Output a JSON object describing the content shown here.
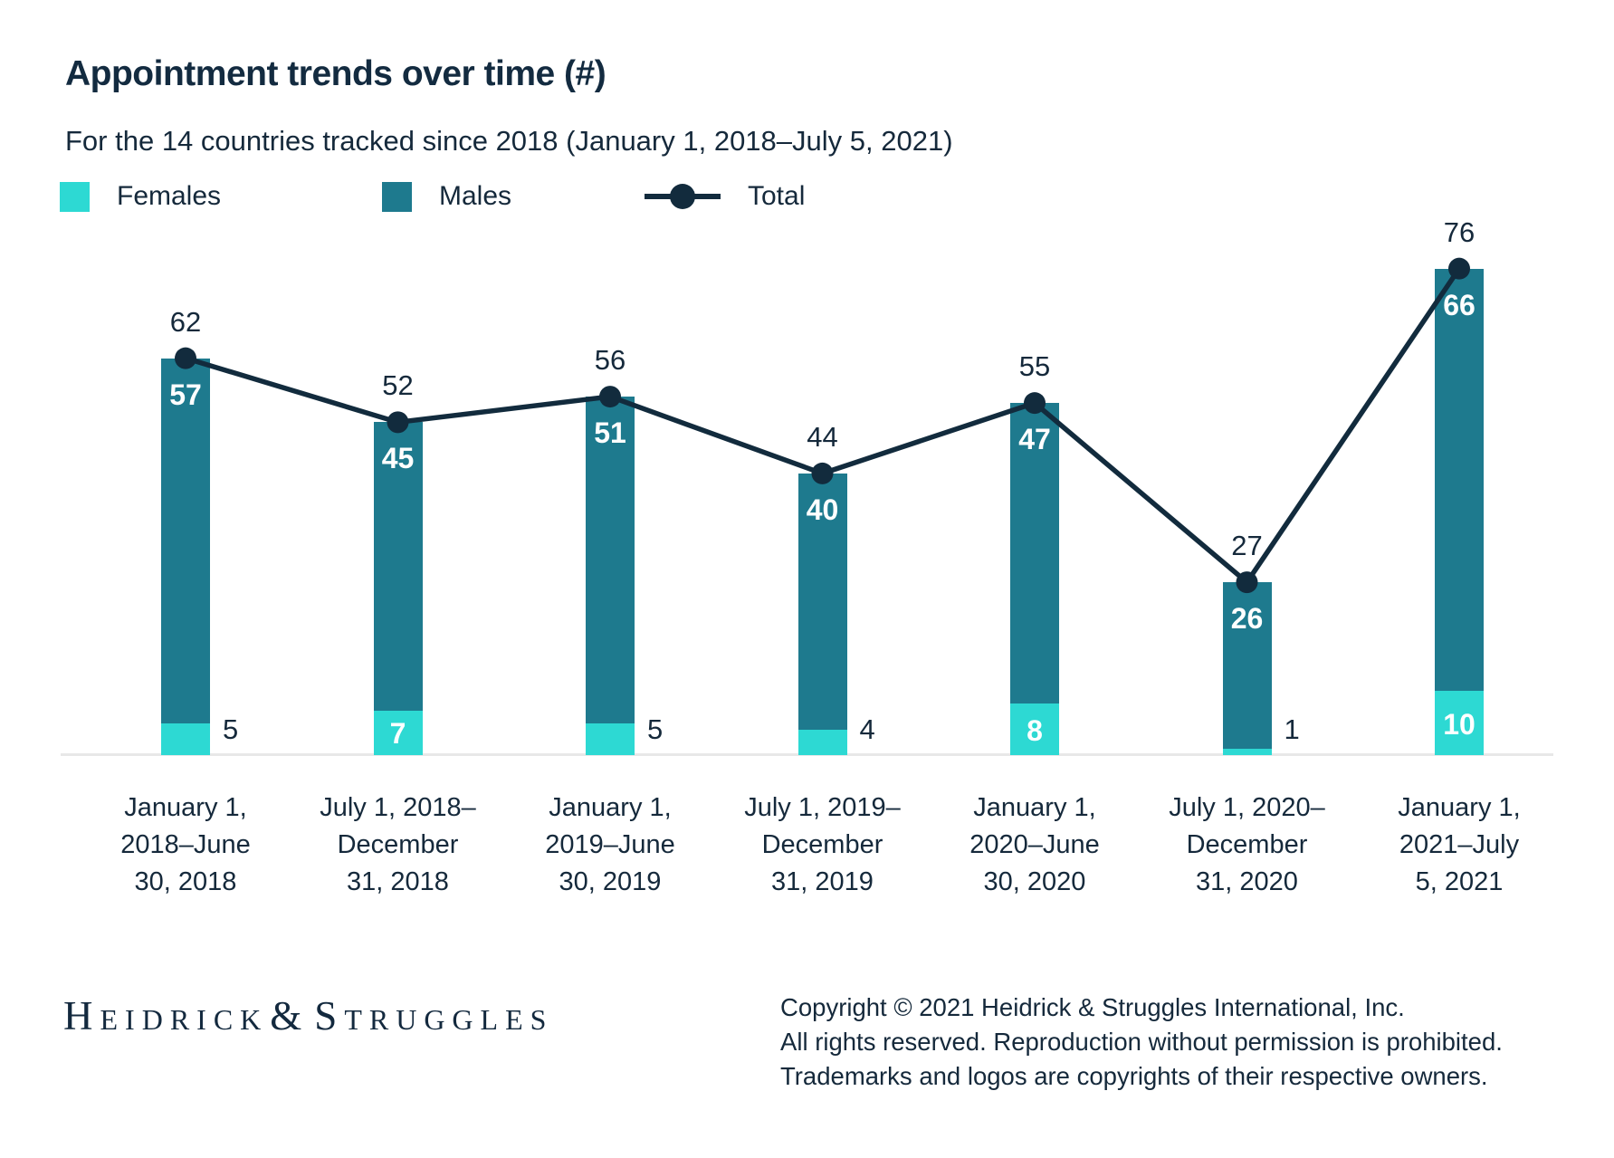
{
  "page": {
    "title": "Appointment trends over time (#)",
    "subtitle": "For the 14 countries tracked since 2018 (January 1, 2018–July 5, 2021)"
  },
  "legend": {
    "items": [
      {
        "label": "Females",
        "color": "#2dd9d3",
        "marker": "square"
      },
      {
        "label": "Males",
        "color": "#1e7a8e",
        "marker": "square"
      },
      {
        "label": "Total",
        "color": "#122b3d",
        "marker": "line-dot"
      }
    ]
  },
  "colors": {
    "females": "#2dd9d3",
    "males": "#1e7a8e",
    "total_line": "#122b3d",
    "text_navy": "#15293b",
    "axis_gray": "#e8e8e8",
    "inside_label_white": "#ffffff"
  },
  "chart_data": {
    "type": "bar",
    "subtype": "stacked-bars-with-total-line",
    "title": "Appointment trends over time (#)",
    "subtitle": "For the 14 countries tracked since 2018 (January 1, 2018–July 5, 2021)",
    "categories": [
      "January 1,\n2018–June\n30, 2018",
      "July 1, 2018–\nDecember\n31, 2018",
      "January 1,\n2019–June\n30, 2019",
      "July 1, 2019–\nDecember\n31, 2019",
      "January 1,\n2020–June\n30, 2020",
      "July 1, 2020–\nDecember\n31, 2020",
      "January 1,\n2021–July\n5, 2021"
    ],
    "series": [
      {
        "name": "Females",
        "role": "stack-bottom",
        "color": "#2dd9d3",
        "values": [
          5,
          7,
          5,
          4,
          8,
          1,
          10
        ]
      },
      {
        "name": "Males",
        "role": "stack-top",
        "color": "#1e7a8e",
        "values": [
          57,
          45,
          51,
          40,
          47,
          26,
          66
        ]
      },
      {
        "name": "Total",
        "role": "line",
        "color": "#122b3d",
        "values": [
          62,
          52,
          56,
          44,
          55,
          27,
          76
        ]
      }
    ],
    "ylim": [
      0,
      80
    ],
    "grid": false,
    "y_axis_shown": false,
    "legend_position": "top-left"
  },
  "footer": {
    "logo_parts": [
      "H",
      "EIDRICK",
      "&",
      "S",
      "TRUGGLES"
    ],
    "copyright_lines": [
      "Copyright © 2021 Heidrick & Struggles International, Inc.",
      "All rights reserved. Reproduction without permission is prohibited.",
      "Trademarks and logos are copyrights of their respective owners."
    ]
  }
}
